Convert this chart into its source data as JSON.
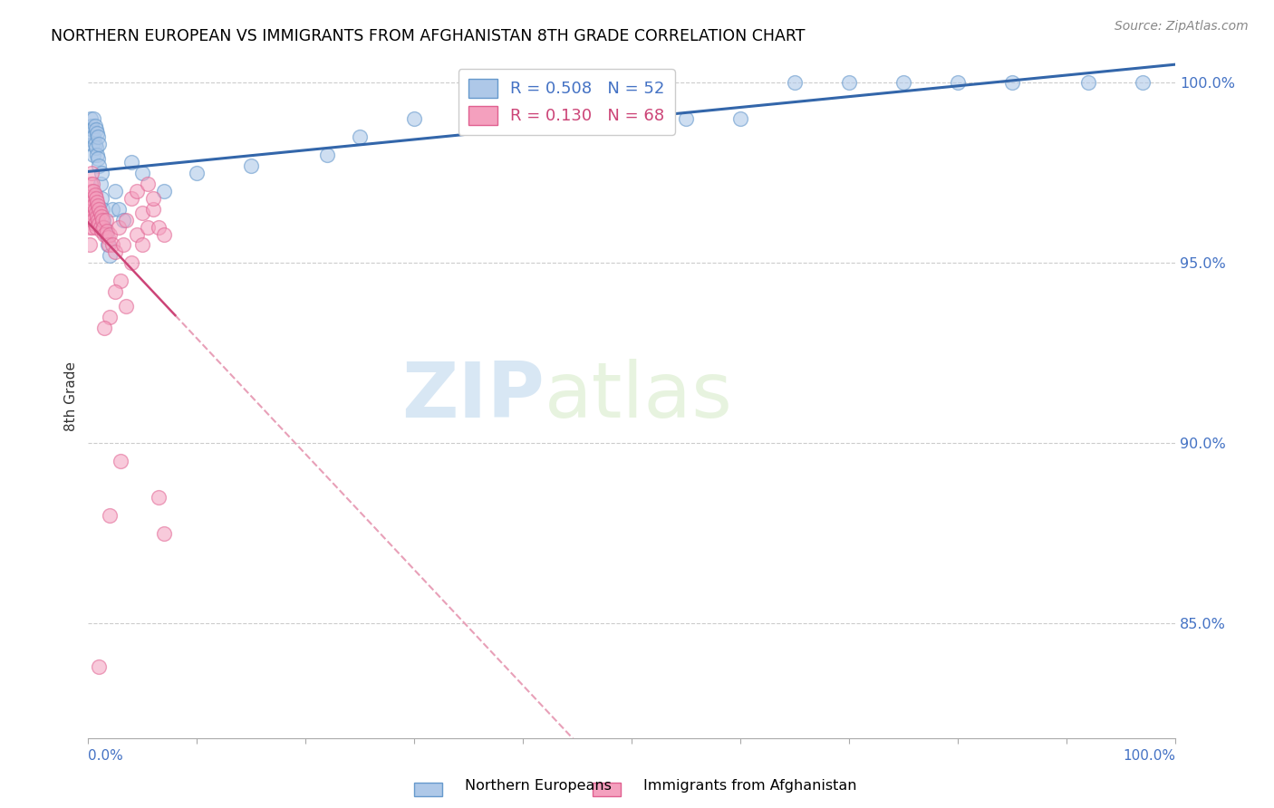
{
  "title": "NORTHERN EUROPEAN VS IMMIGRANTS FROM AFGHANISTAN 8TH GRADE CORRELATION CHART",
  "source": "Source: ZipAtlas.com",
  "ylabel": "8th Grade",
  "xlim": [
    0.0,
    1.0
  ],
  "ylim": [
    0.818,
    1.008
  ],
  "yticks": [
    0.85,
    0.9,
    0.95,
    1.0
  ],
  "ytick_labels": [
    "85.0%",
    "90.0%",
    "95.0%",
    "100.0%"
  ],
  "blue_R": 0.508,
  "blue_N": 52,
  "pink_R": 0.13,
  "pink_N": 68,
  "blue_color": "#aec8e8",
  "pink_color": "#f4a0be",
  "blue_edge_color": "#6699cc",
  "pink_edge_color": "#e06090",
  "blue_line_color": "#3366aa",
  "pink_line_color": "#cc4477",
  "pink_dash_color": "#e8a0b8",
  "watermark_zip": "ZIP",
  "watermark_atlas": "atlas",
  "blue_x": [
    0.002,
    0.003,
    0.003,
    0.004,
    0.004,
    0.005,
    0.005,
    0.005,
    0.006,
    0.006,
    0.007,
    0.007,
    0.008,
    0.008,
    0.009,
    0.009,
    0.01,
    0.01,
    0.011,
    0.012,
    0.012,
    0.013,
    0.014,
    0.015,
    0.016,
    0.018,
    0.02,
    0.022,
    0.025,
    0.028,
    0.032,
    0.04,
    0.05,
    0.07,
    0.1,
    0.15,
    0.22,
    0.3,
    0.4,
    0.5,
    0.6,
    0.65,
    0.7,
    0.75,
    0.8,
    0.85,
    0.92,
    0.97,
    0.55,
    0.45,
    0.35,
    0.25
  ],
  "blue_y": [
    0.99,
    0.988,
    0.985,
    0.987,
    0.983,
    0.99,
    0.985,
    0.98,
    0.988,
    0.983,
    0.987,
    0.982,
    0.986,
    0.98,
    0.985,
    0.979,
    0.983,
    0.977,
    0.972,
    0.968,
    0.975,
    0.965,
    0.962,
    0.96,
    0.958,
    0.955,
    0.952,
    0.965,
    0.97,
    0.965,
    0.962,
    0.978,
    0.975,
    0.97,
    0.975,
    0.977,
    0.98,
    0.99,
    0.99,
    0.99,
    0.99,
    1.0,
    1.0,
    1.0,
    1.0,
    1.0,
    1.0,
    1.0,
    0.99,
    0.99,
    0.99,
    0.985
  ],
  "pink_x": [
    0.001,
    0.001,
    0.001,
    0.002,
    0.002,
    0.002,
    0.003,
    0.003,
    0.003,
    0.003,
    0.004,
    0.004,
    0.004,
    0.004,
    0.005,
    0.005,
    0.005,
    0.006,
    0.006,
    0.006,
    0.007,
    0.007,
    0.007,
    0.008,
    0.008,
    0.009,
    0.009,
    0.01,
    0.01,
    0.011,
    0.011,
    0.012,
    0.012,
    0.013,
    0.014,
    0.015,
    0.016,
    0.017,
    0.018,
    0.019,
    0.02,
    0.022,
    0.025,
    0.028,
    0.032,
    0.035,
    0.04,
    0.045,
    0.05,
    0.055,
    0.06,
    0.065,
    0.07,
    0.05,
    0.04,
    0.03,
    0.025,
    0.02,
    0.015,
    0.06,
    0.035,
    0.045,
    0.055,
    0.065,
    0.07,
    0.03,
    0.02,
    0.01
  ],
  "pink_y": [
    0.965,
    0.96,
    0.955,
    0.972,
    0.968,
    0.963,
    0.975,
    0.97,
    0.966,
    0.962,
    0.972,
    0.968,
    0.964,
    0.96,
    0.97,
    0.966,
    0.962,
    0.969,
    0.965,
    0.961,
    0.968,
    0.964,
    0.96,
    0.967,
    0.963,
    0.966,
    0.962,
    0.965,
    0.961,
    0.964,
    0.96,
    0.963,
    0.959,
    0.962,
    0.96,
    0.958,
    0.962,
    0.959,
    0.957,
    0.955,
    0.958,
    0.955,
    0.953,
    0.96,
    0.955,
    0.962,
    0.968,
    0.958,
    0.964,
    0.96,
    0.965,
    0.96,
    0.958,
    0.955,
    0.95,
    0.945,
    0.942,
    0.935,
    0.932,
    0.968,
    0.938,
    0.97,
    0.972,
    0.885,
    0.875,
    0.895,
    0.88,
    0.838
  ]
}
